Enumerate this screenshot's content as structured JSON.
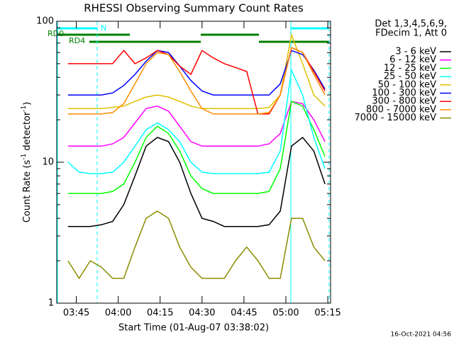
{
  "chart_data": {
    "type": "line",
    "title": "RHESSI Observing Summary Count Rates",
    "x_label": "Start Time (01-Aug-07 03:38:02)",
    "y_label_parts": [
      "Count Rate (s",
      "-1",
      " detector",
      "-1",
      ")"
    ],
    "legend_header": [
      "Det 1,3,4,5,6,9,",
      "FDecim 1, Att 0"
    ],
    "flags": [
      "RD0",
      "RD4",
      "N"
    ],
    "footer": "16-Oct-2021 04:56",
    "log_y": true,
    "xlim": [
      "03:38",
      "05:16"
    ],
    "xticks": [
      "03:45",
      "04:00",
      "04:15",
      "04:30",
      "04:45",
      "05:00",
      "05:15"
    ],
    "ylim": [
      1,
      100
    ],
    "yticks": [
      1,
      10,
      100
    ],
    "yminor": [
      2,
      3,
      4,
      5,
      6,
      7,
      8,
      9,
      20,
      30,
      40,
      50,
      60,
      70,
      80,
      90
    ],
    "x": [
      "03:38",
      "03:42",
      "03:46",
      "03:50",
      "03:54",
      "03:58",
      "04:02",
      "04:06",
      "04:10",
      "04:14",
      "04:18",
      "04:22",
      "04:26",
      "04:30",
      "04:34",
      "04:38",
      "04:42",
      "04:46",
      "04:50",
      "04:54",
      "04:58",
      "05:02",
      "05:06",
      "05:10",
      "05:14"
    ],
    "series": [
      {
        "name": "3 - 6 keV",
        "color": "#000000",
        "values": [
          null,
          3.5,
          3.5,
          3.5,
          3.6,
          3.8,
          5,
          8,
          13,
          15,
          14,
          10,
          6,
          4,
          3.8,
          3.5,
          3.5,
          3.5,
          3.5,
          3.6,
          4.5,
          13,
          15,
          12,
          7
        ]
      },
      {
        "name": "6 - 12 keV",
        "color": "#ff00ff",
        "values": [
          null,
          13,
          13,
          13,
          13,
          13.5,
          15,
          19,
          24,
          25,
          23,
          18,
          14,
          13,
          13,
          13,
          13,
          13,
          13,
          13.5,
          16,
          27,
          26,
          20,
          14
        ]
      },
      {
        "name": "12 - 25 keV",
        "color": "#00ff00",
        "values": [
          null,
          6,
          6,
          6,
          6,
          6.2,
          7,
          10,
          15,
          18,
          16,
          12,
          8,
          6.5,
          6,
          6,
          6,
          6,
          6,
          6.2,
          9,
          27,
          25,
          17,
          11
        ]
      },
      {
        "name": "25 - 50 keV",
        "color": "#00ffff",
        "values": [
          null,
          10,
          8.5,
          8.3,
          8.3,
          8.5,
          10,
          13,
          17,
          19,
          17,
          14,
          10,
          8.5,
          8.3,
          8.3,
          8.3,
          8.3,
          8.3,
          8.5,
          12,
          45,
          30,
          15,
          9
        ]
      },
      {
        "name": "50 - 100 keV",
        "color": "#e0c000",
        "values": [
          null,
          24,
          24,
          24,
          24,
          24.5,
          25,
          27,
          29,
          30,
          29,
          27,
          25,
          24,
          24,
          24,
          24,
          24,
          24,
          24.5,
          30,
          80,
          50,
          30,
          25
        ]
      },
      {
        "name": "100 - 300 keV",
        "color": "#0000ff",
        "values": [
          null,
          30,
          30,
          30,
          30,
          31,
          35,
          42,
          52,
          62,
          60,
          48,
          38,
          32,
          30,
          30,
          30,
          30,
          30,
          30,
          36,
          62,
          58,
          45,
          33
        ]
      },
      {
        "name": "300 - 800 keV",
        "color": "#ff0000",
        "values": [
          null,
          50,
          50,
          50,
          50,
          50,
          62,
          50,
          55,
          62,
          58,
          48,
          42,
          62,
          55,
          50,
          47,
          44,
          22,
          22,
          30,
          65,
          60,
          44,
          32
        ]
      },
      {
        "name": "800 - 7000 keV",
        "color": "#ff8c00",
        "values": [
          null,
          22,
          22,
          22,
          22,
          22.5,
          26,
          36,
          50,
          60,
          58,
          44,
          32,
          24,
          22,
          22,
          22,
          22,
          22,
          22.5,
          30,
          65,
          60,
          42,
          30
        ]
      },
      {
        "name": "7000 - 15000 keV",
        "color": "#8b8b00",
        "values": [
          null,
          2,
          1.5,
          2,
          1.8,
          1.5,
          1.5,
          2.5,
          4,
          4.5,
          4,
          2.5,
          1.8,
          1.5,
          1.5,
          1.5,
          2,
          2.5,
          2,
          1.5,
          1.5,
          4,
          4,
          2.5,
          2
        ]
      }
    ]
  }
}
